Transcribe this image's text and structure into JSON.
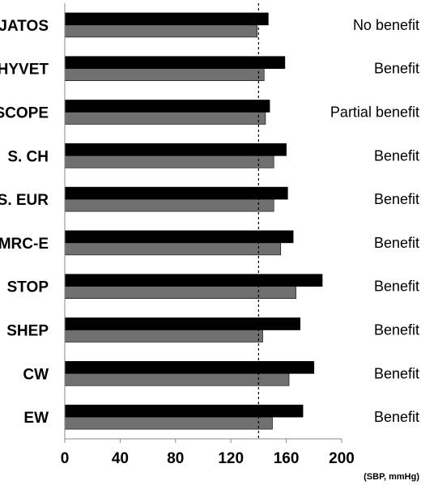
{
  "chart_data": {
    "type": "bar",
    "orientation": "horizontal",
    "categories": [
      "JATOS",
      "HYVET",
      "SCOPE",
      "S. CH",
      "S. EUR",
      "MRC-E",
      "STOP",
      "SHEP",
      "CW",
      "EW"
    ],
    "series": [
      {
        "values": [
          147,
          159,
          148,
          160,
          161,
          165,
          186,
          170,
          180,
          172
        ],
        "color": "#000000"
      },
      {
        "values": [
          139,
          144,
          145,
          151,
          151,
          156,
          167,
          143,
          162,
          150
        ],
        "color": "#707070"
      }
    ],
    "outcomes": [
      "No benefit",
      "Benefit",
      "Partial benefit",
      "Benefit",
      "Benefit",
      "Benefit",
      "Benefit",
      "Benefit",
      "Benefit",
      "Benefit"
    ],
    "xticks": [
      "0",
      "40",
      "80",
      "120",
      "160",
      "200"
    ],
    "xtick_values": [
      0,
      40,
      80,
      120,
      160,
      200
    ],
    "xlim": [
      0,
      200
    ],
    "xlabel": "(SBP, mmHg)",
    "reference_line": 140,
    "grid": false,
    "legend": "none"
  }
}
